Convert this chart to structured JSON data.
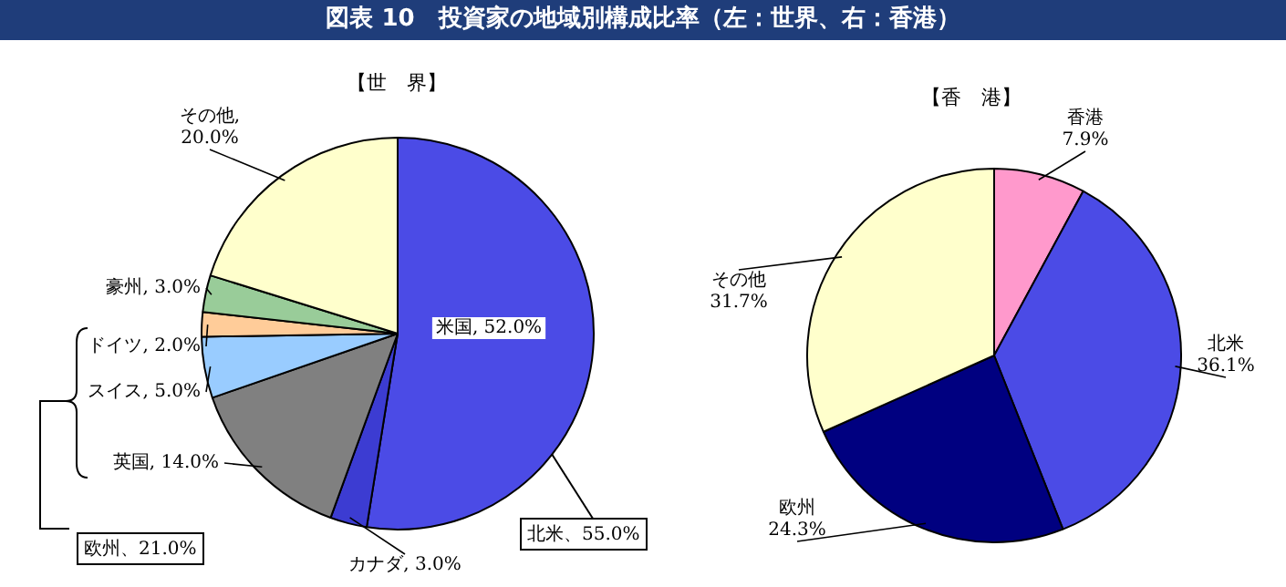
{
  "chart_data": [
    {
      "type": "pie",
      "title": "図表 10　投資家の地域別構成比率（左：世界、右：香港）",
      "subtitle": "【世　界】",
      "categories": [
        "米国",
        "カナダ",
        "英国",
        "スイス",
        "ドイツ",
        "豪州",
        "その他"
      ],
      "values": [
        52.0,
        3.0,
        14.0,
        5.0,
        2.0,
        3.0,
        20.0
      ],
      "colors": [
        "#4b4be6",
        "#3c3cd2",
        "#808080",
        "#99ccff",
        "#ffcc99",
        "#99cc99",
        "#ffffcc"
      ],
      "value_labels": [
        ", 52.0%",
        ", 3.0%",
        ", 14.0%",
        ", 5.0%",
        ", 2.0%",
        ", 3.0%",
        ",\n20.0%"
      ],
      "annotations": [
        "北米、55.0%",
        "欧州、21.0%"
      ],
      "legend": false
    },
    {
      "type": "pie",
      "title": "【香　港】",
      "categories": [
        "香港",
        "北米",
        "欧州",
        "その他"
      ],
      "values": [
        7.9,
        36.1,
        24.3,
        31.7
      ],
      "colors": [
        "#ff99cc",
        "#4b4be6",
        "#000080",
        "#ffffcc"
      ],
      "value_labels": [
        "\n7.9%",
        "\n36.1%",
        "\n24.3%",
        "\n31.7%"
      ],
      "legend": false
    }
  ]
}
